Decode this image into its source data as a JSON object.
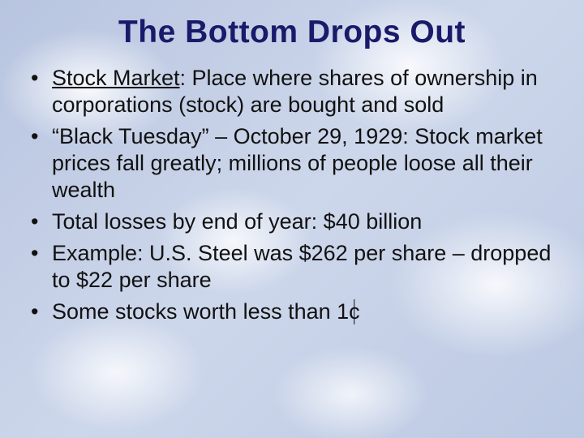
{
  "slide": {
    "background": {
      "base_gradient": [
        "#b8c5e0",
        "#cdd7eb",
        "#bcc9e3"
      ],
      "cloud_color": "#ffffff"
    },
    "title": {
      "text": "The Bottom Drops Out",
      "color": "#1a1a6a",
      "font_family": "Arial Black",
      "font_size_pt": 32,
      "font_weight": 900,
      "align": "center"
    },
    "bullets": {
      "font_family": "Arial",
      "font_size_pt": 22,
      "color": "#111111",
      "items": [
        {
          "term": "Stock Market",
          "term_underlined": true,
          "rest": ": Place where shares of ownership in corporations (stock) are bought and sold"
        },
        {
          "text": "“Black Tuesday” – October 29, 1929: Stock market prices fall greatly; millions of people loose all their wealth"
        },
        {
          "text": "Total losses by end of year: $40 billion"
        },
        {
          "text": "Example: U.S. Steel was $262 per share – dropped to $22 per share"
        },
        {
          "pre": "Some stocks worth less than 1",
          "cent_symbol": "c",
          "has_cent": true
        }
      ]
    }
  }
}
